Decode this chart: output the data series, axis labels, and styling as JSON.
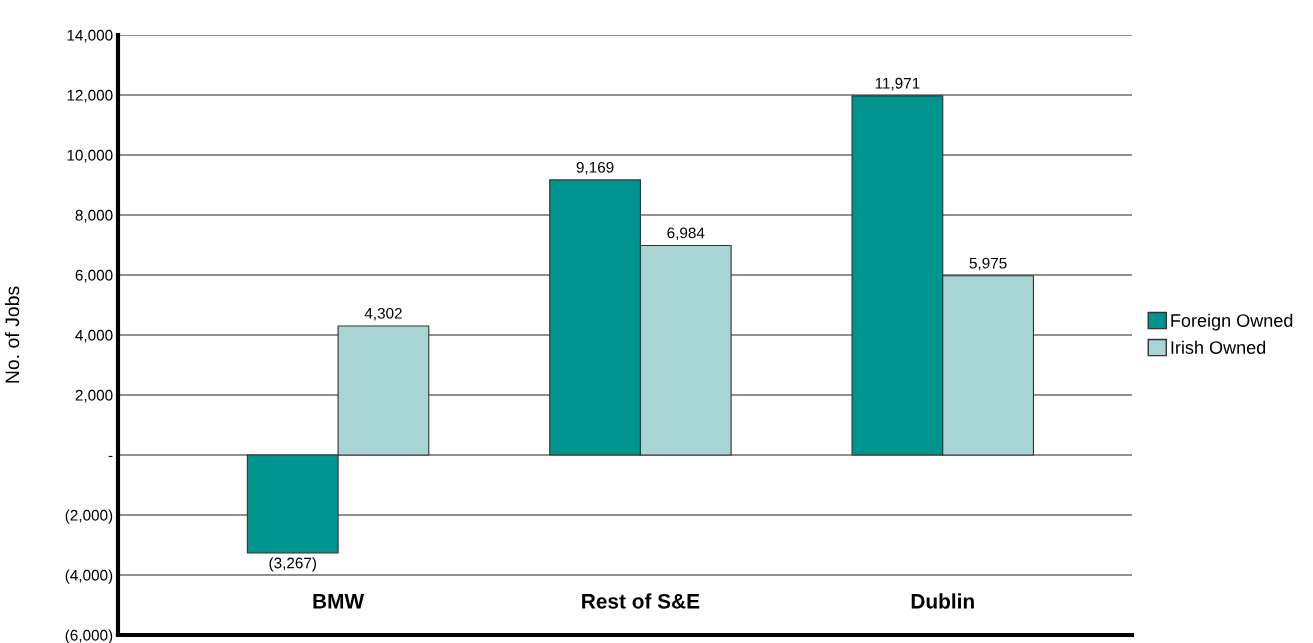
{
  "chart_data": {
    "type": "bar",
    "ylabel": "No. of Jobs",
    "categories": [
      "BMW",
      "Rest of S&E",
      "Dublin"
    ],
    "series": [
      {
        "name": "Foreign Owned",
        "color": "#00948f",
        "values": [
          -3267,
          9169,
          11971
        ],
        "value_labels": [
          "(3,267)",
          "9,169",
          "11,971"
        ]
      },
      {
        "name": "Irish Owned",
        "color": "#a8d5d4",
        "values": [
          4302,
          6984,
          5975
        ],
        "value_labels": [
          "4,302",
          "6,984",
          "5,975"
        ]
      }
    ],
    "ylim": [
      -6000,
      14000
    ],
    "yticks": [
      {
        "value": -6000,
        "label": "(6,000)"
      },
      {
        "value": -4000,
        "label": "(4,000)"
      },
      {
        "value": -2000,
        "label": "(2,000)"
      },
      {
        "value": 0,
        "label": "-"
      },
      {
        "value": 2000,
        "label": "2,000"
      },
      {
        "value": 4000,
        "label": "4,000"
      },
      {
        "value": 6000,
        "label": "6,000"
      },
      {
        "value": 8000,
        "label": "8,000"
      },
      {
        "value": 10000,
        "label": "10,000"
      },
      {
        "value": 12000,
        "label": "12,000"
      },
      {
        "value": 14000,
        "label": "14,000"
      }
    ],
    "grid": "y",
    "legend": "right"
  }
}
